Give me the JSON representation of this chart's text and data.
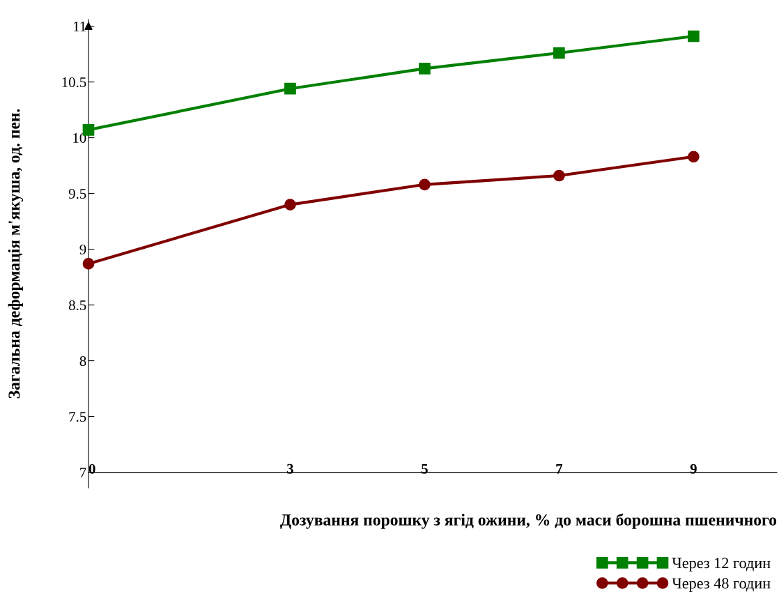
{
  "chart_data": {
    "type": "line",
    "xlabel": "Дозування порошку з ягід ожини, % до маси борошна пшеничного",
    "ylabel": "Загальна деформація м'якуша, од. пен.",
    "x": [
      0,
      3,
      5,
      7,
      9
    ],
    "series": [
      {
        "name": "Через 12 годин",
        "color": "#008000",
        "marker": "square",
        "values": [
          10.07,
          10.44,
          10.62,
          10.76,
          10.91
        ]
      },
      {
        "name": "Через 48 годин",
        "color": "#800000",
        "marker": "circle",
        "values": [
          8.87,
          9.4,
          9.58,
          9.66,
          9.83
        ]
      }
    ],
    "xlim": [
      0,
      10.24
    ],
    "xticks": [
      0,
      3,
      5,
      7,
      9
    ],
    "ylim": [
      6.86,
      11.06
    ],
    "yticks": [
      7,
      7.5,
      8,
      8.5,
      9,
      9.5,
      10,
      10.5,
      11
    ],
    "grid": false,
    "legend": "bottom right",
    "line_style": "solid"
  }
}
